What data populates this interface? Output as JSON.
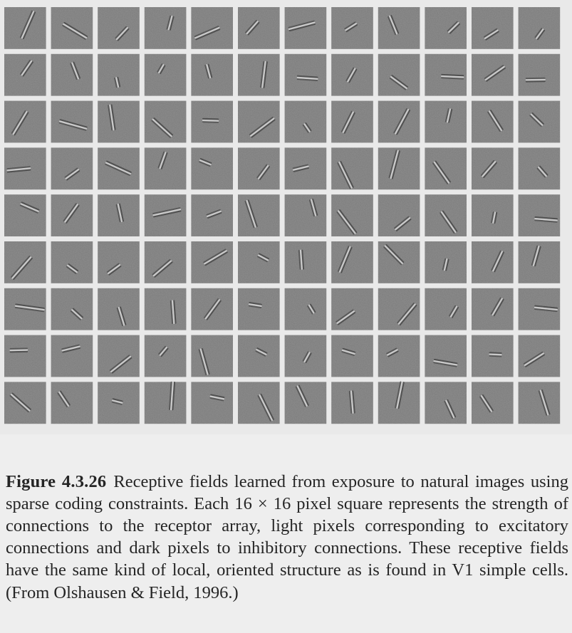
{
  "figure": {
    "grid": {
      "rows": 9,
      "cols": 12
    },
    "palette": {
      "background": "#e9e9e9",
      "patch_base": "#7a7a7a",
      "excitatory": "#d6d6d6",
      "inhibitory": "#3c3c3c"
    }
  },
  "caption": {
    "label": "Figure 4.3.26",
    "text": "Receptive fields learned from exposure to natural images using sparse coding constraints. Each 16 × 16 pixel square represents the strength of connections to the receptor array, light pixels corresponding to excitatory connections and dark pixels to inhibitory connections. These receptive fields have the same kind of local, oriented structure as is found in V1 simple cells. (From Olshausen & Field, 1996.)"
  }
}
